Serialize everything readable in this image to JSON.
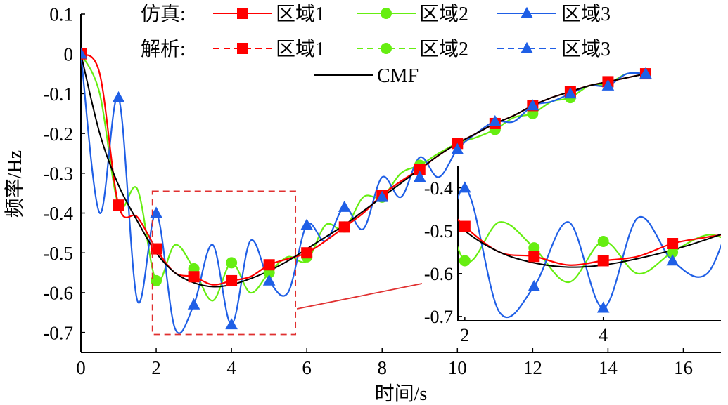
{
  "chart_data": {
    "type": "line",
    "title": "",
    "xlabel": "时间/s",
    "ylabel": "频率/Hz",
    "xlim": [
      0,
      17
    ],
    "ylim": [
      -0.75,
      0.1
    ],
    "xticks": [
      0,
      2,
      4,
      6,
      8,
      10,
      12,
      14,
      16
    ],
    "yticks": [
      0.1,
      0,
      -0.1,
      -0.2,
      -0.3,
      -0.4,
      -0.5,
      -0.6,
      -0.7
    ],
    "xtick_labels": [
      "0",
      "2",
      "4",
      "6",
      "8",
      "10",
      "12",
      "14",
      "16"
    ],
    "ytick_labels": [
      "0.1",
      "0",
      "-0.1",
      "-0.2",
      "-0.3",
      "-0.4",
      "-0.5",
      "-0.6",
      "-0.7"
    ],
    "legend": {
      "group_sim": "仿真:",
      "group_ana": "解析:",
      "labels": [
        "区域1",
        "区域2",
        "区域3"
      ],
      "cmf": "CMF",
      "placement": "top"
    },
    "colors": {
      "region1": "#ff0000",
      "region2": "#66ee11",
      "region3": "#1f5fe6",
      "cmf": "#000000",
      "zoom_box": "#e03030"
    },
    "x": [
      0,
      0.5,
      1,
      1.5,
      2,
      2.5,
      3,
      3.5,
      4,
      4.5,
      5,
      5.5,
      6,
      6.5,
      7,
      7.5,
      8,
      8.5,
      9,
      9.5,
      10,
      10.5,
      11,
      11.5,
      12,
      12.5,
      13,
      13.5,
      14,
      14.5,
      15
    ],
    "series": [
      {
        "name": "CMF",
        "style": "solid",
        "values": [
          0,
          -0.2,
          -0.33,
          -0.42,
          -0.5,
          -0.55,
          -0.575,
          -0.585,
          -0.58,
          -0.565,
          -0.545,
          -0.52,
          -0.49,
          -0.46,
          -0.43,
          -0.395,
          -0.36,
          -0.325,
          -0.29,
          -0.255,
          -0.225,
          -0.2,
          -0.175,
          -0.155,
          -0.13,
          -0.11,
          -0.095,
          -0.08,
          -0.07,
          -0.06,
          -0.05
        ]
      },
      {
        "name": "区域1",
        "style": "solid",
        "values": [
          0,
          -0.05,
          -0.38,
          -0.41,
          -0.49,
          -0.55,
          -0.56,
          -0.58,
          -0.57,
          -0.56,
          -0.53,
          -0.515,
          -0.5,
          -0.47,
          -0.435,
          -0.4,
          -0.355,
          -0.32,
          -0.29,
          -0.255,
          -0.225,
          -0.2,
          -0.175,
          -0.155,
          -0.13,
          -0.11,
          -0.095,
          -0.08,
          -0.07,
          -0.06,
          -0.05
        ]
      },
      {
        "name": "区域2",
        "style": "solid",
        "values": [
          0,
          -0.1,
          -0.38,
          -0.34,
          -0.57,
          -0.48,
          -0.54,
          -0.62,
          -0.525,
          -0.6,
          -0.55,
          -0.51,
          -0.52,
          -0.43,
          -0.44,
          -0.36,
          -0.36,
          -0.3,
          -0.28,
          -0.25,
          -0.225,
          -0.21,
          -0.19,
          -0.16,
          -0.15,
          -0.12,
          -0.11,
          -0.08,
          -0.075,
          -0.05,
          -0.05
        ]
      },
      {
        "name": "区域3",
        "style": "solid",
        "values": [
          0,
          -0.4,
          -0.11,
          -0.62,
          -0.4,
          -0.69,
          -0.63,
          -0.48,
          -0.68,
          -0.47,
          -0.57,
          -0.6,
          -0.43,
          -0.47,
          -0.385,
          -0.44,
          -0.31,
          -0.36,
          -0.26,
          -0.31,
          -0.24,
          -0.2,
          -0.17,
          -0.17,
          -0.13,
          -0.12,
          -0.1,
          -0.08,
          -0.08,
          -0.05,
          -0.05
        ]
      }
    ],
    "analytic_markers": {
      "区域1": {
        "x": [
          0,
          1,
          2,
          3,
          4,
          5,
          6,
          7,
          8,
          9,
          10,
          11,
          12,
          13,
          14,
          15
        ],
        "values": [
          0,
          -0.38,
          -0.49,
          -0.56,
          -0.57,
          -0.53,
          -0.5,
          -0.435,
          -0.355,
          -0.29,
          -0.225,
          -0.175,
          -0.13,
          -0.095,
          -0.07,
          -0.05
        ]
      },
      "区域2": {
        "x": [
          0,
          1,
          2,
          3,
          4,
          5,
          6,
          7,
          8,
          9,
          10,
          11,
          12,
          13,
          14,
          15
        ],
        "values": [
          0,
          -0.38,
          -0.57,
          -0.54,
          -0.525,
          -0.55,
          -0.51,
          -0.435,
          -0.36,
          -0.28,
          -0.225,
          -0.19,
          -0.15,
          -0.11,
          -0.075,
          -0.05
        ]
      },
      "区域3": {
        "x": [
          0,
          1,
          2,
          3,
          4,
          5,
          6,
          7,
          8,
          9,
          10,
          11,
          12,
          13,
          14,
          15
        ],
        "values": [
          0,
          -0.11,
          -0.4,
          -0.63,
          -0.68,
          -0.57,
          -0.43,
          -0.385,
          -0.36,
          -0.31,
          -0.24,
          -0.17,
          -0.13,
          -0.1,
          -0.08,
          -0.05
        ]
      }
    },
    "inset": {
      "xlim": [
        1.9,
        5.7
      ],
      "ylim": [
        -0.71,
        -0.35
      ],
      "xticks": [
        2,
        4
      ],
      "xtick_labels": [
        "2",
        "4"
      ],
      "yticks": [
        -0.4,
        -0.5,
        -0.6,
        -0.7
      ],
      "ytick_labels": [
        "-0.4",
        "-0.5",
        "-0.6",
        "-0.7"
      ],
      "source_box": {
        "x": [
          1.9,
          5.7
        ],
        "y": [
          -0.705,
          -0.345
        ]
      }
    }
  }
}
